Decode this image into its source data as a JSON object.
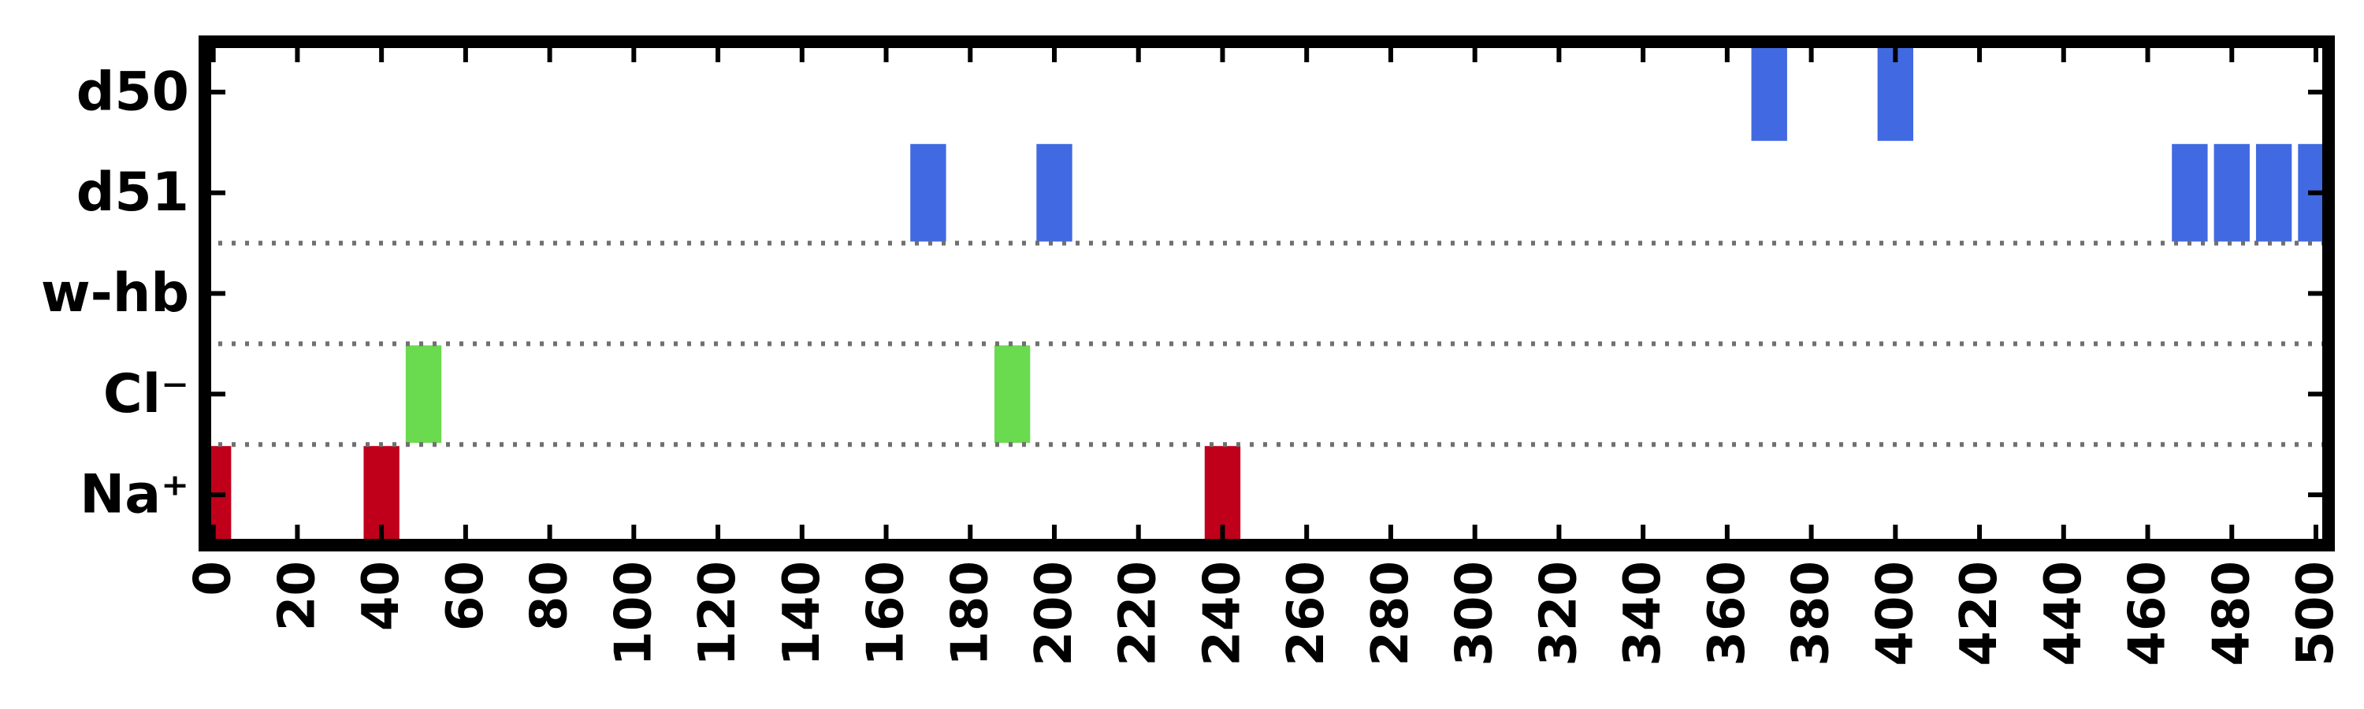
{
  "chart_data": {
    "type": "bar",
    "orientation": "event-raster",
    "rows": [
      "d50",
      "d51",
      "w-hb",
      "Cl⁻",
      "Na⁺"
    ],
    "xlim": [
      -2,
      503
    ],
    "xticks": [
      0,
      20,
      40,
      60,
      80,
      100,
      120,
      140,
      160,
      180,
      200,
      220,
      240,
      260,
      280,
      300,
      320,
      340,
      360,
      380,
      400,
      420,
      440,
      460,
      480,
      500
    ],
    "x_tick_labels": [
      "0",
      "20",
      "40",
      "60",
      "80",
      "100",
      "120",
      "140",
      "160",
      "180",
      "200",
      "220",
      "240",
      "260",
      "280",
      "300",
      "320",
      "340",
      "360",
      "380",
      "400",
      "420",
      "440",
      "460",
      "480",
      "500"
    ],
    "bar_width": 8.5,
    "grid": "dotted separators between groups",
    "series": [
      {
        "row": "d50",
        "color": "#4169E1",
        "x": [
          370,
          400
        ]
      },
      {
        "row": "d51",
        "color": "#4169E1",
        "x": [
          170,
          200,
          470,
          480,
          490,
          500
        ]
      },
      {
        "row": "w-hb",
        "color": "#4169E1",
        "x": []
      },
      {
        "row": "Cl⁻",
        "color": "#6ADA4F",
        "x": [
          50,
          190
        ]
      },
      {
        "row": "Na⁺",
        "color": "#C0001A",
        "x": [
          0,
          40,
          240
        ]
      }
    ]
  }
}
